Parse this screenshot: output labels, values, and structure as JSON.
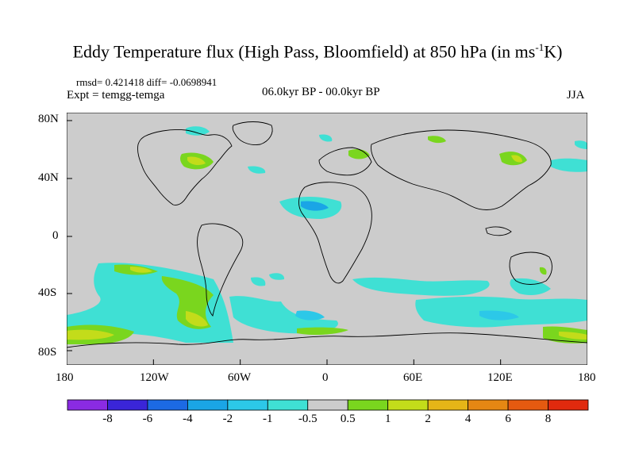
{
  "title": {
    "main": "Eddy Temperature flux (High Pass, Bloomfield) at 850 hPa (in ms",
    "sup": "-1",
    "unit_end": "K)"
  },
  "stats": "rmsd= 0.421418 diff= -0.0698941",
  "expt": "Expt = temgg-temga",
  "period": "06.0kyr BP - 00.0kyr BP",
  "season": "JJA",
  "axes": {
    "lat_labels": [
      "80N",
      "40N",
      "0",
      "40S",
      "80S"
    ],
    "lon_labels": [
      "180",
      "120W",
      "60W",
      "0",
      "60E",
      "120E",
      "180"
    ]
  },
  "colorbar": {
    "colors": [
      "#8a2be2",
      "#3a25d8",
      "#1c6ae4",
      "#1aa5e6",
      "#2cc8e8",
      "#3fe0d4",
      "#cccccc",
      "#7ad61e",
      "#c3dc1a",
      "#e6b517",
      "#e58713",
      "#e55a10",
      "#e02a0e"
    ],
    "labels": [
      "-8",
      "-6",
      "-4",
      "-2",
      "-1",
      "-0.5",
      "0.5",
      "1",
      "2",
      "4",
      "6",
      "8"
    ]
  },
  "colors": {
    "background": "#cccccc",
    "land_outline": "#000000"
  }
}
